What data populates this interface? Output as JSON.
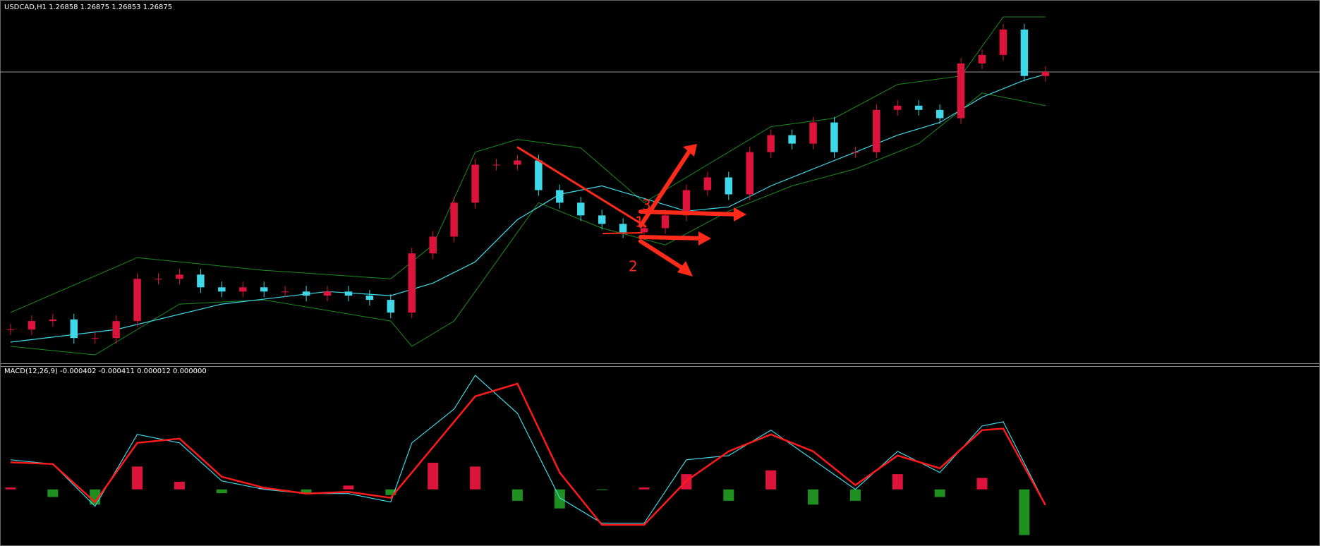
{
  "chart_data": [
    {
      "type": "candlestick",
      "title": "USDCAD,H1  1.26858 1.26875 1.26853 1.26875",
      "close": [
        1.25173,
        1.25229,
        1.2524,
        1.25117,
        1.25117,
        1.25229,
        1.25508,
        1.25508,
        1.25536,
        1.25452,
        1.25424,
        1.25452,
        1.25424,
        1.25424,
        1.25397,
        1.25424,
        1.25397,
        1.25369,
        1.25285,
        1.25676,
        1.25787,
        1.26011,
        1.26262,
        1.26262,
        1.2629,
        1.26094,
        1.26011,
        1.25927,
        1.25871,
        1.25815,
        1.25843,
        1.25927,
        1.26094,
        1.26178,
        1.26066,
        1.26345,
        1.26457,
        1.26401,
        1.26541,
        1.26345,
        1.26345,
        1.26624,
        1.26652,
        1.26624,
        1.26569,
        1.26931,
        1.26987,
        1.27155,
        1.26848,
        1.26875
      ],
      "up_color": "#dc143c",
      "down_color": "#3fd8e8",
      "ma": {
        "color": "#3fd8e8",
        "x": [
          0,
          5,
          10,
          15,
          18,
          20,
          22,
          24,
          26,
          28,
          30,
          32,
          34,
          36,
          38,
          40,
          42,
          44,
          46,
          48,
          49
        ],
        "values": [
          1.2509,
          1.25173,
          1.25341,
          1.25424,
          1.25397,
          1.2548,
          1.2562,
          1.25899,
          1.26066,
          1.26122,
          1.26039,
          1.25955,
          1.25983,
          1.26122,
          1.26234,
          1.26345,
          1.26457,
          1.26541,
          1.26708,
          1.2682,
          1.26859
        ]
      },
      "band_upper": {
        "color": "#1c8c1c",
        "x": [
          0,
          6,
          12,
          18,
          20,
          22,
          24,
          27,
          30,
          33,
          36,
          39,
          42,
          45,
          47,
          49
        ],
        "values": [
          1.25285,
          1.25648,
          1.25564,
          1.25508,
          1.25732,
          1.26345,
          1.26429,
          1.26373,
          1.26011,
          1.26262,
          1.26513,
          1.26569,
          1.26792,
          1.26848,
          1.27238,
          1.27238
        ]
      },
      "band_lower": {
        "color": "#1c8c1c",
        "x": [
          0,
          4,
          8,
          12,
          18,
          19,
          21,
          23,
          25,
          28,
          31,
          34,
          37,
          40,
          43,
          46,
          49
        ],
        "values": [
          1.25062,
          1.25006,
          1.25341,
          1.25369,
          1.25229,
          1.25062,
          1.25229,
          1.2562,
          1.26011,
          1.25843,
          1.25732,
          1.25955,
          1.26122,
          1.26234,
          1.26401,
          1.26736,
          1.26652
        ]
      },
      "xlim": [
        -0.5,
        62
      ],
      "ylim": [
        1.2495,
        1.2735
      ],
      "annotations": [
        "3",
        "1",
        "2"
      ]
    },
    {
      "type": "macd",
      "title": "MACD(12,26,9) -0.000402 -0.000411 0.000012 0.000000",
      "x": [
        0,
        2,
        4,
        6,
        8,
        10,
        12,
        14,
        16,
        18,
        19,
        21,
        22,
        24,
        26,
        28,
        30,
        32,
        34,
        36,
        38,
        40,
        42,
        44,
        46,
        47,
        49
      ],
      "macd": {
        "color": "#3fd8e8",
        "values": [
          0.000777,
          0.000666,
          -0.000444,
          0.001443,
          0.001221,
          0.000222,
          0,
          -0.000111,
          -0.000111,
          -0.000333,
          0.001221,
          0.002109,
          0.002997,
          0.001998,
          -0.000222,
          -0.000888,
          -0.000888,
          0.000777,
          0.000888,
          0.001554,
          0.000777,
          0,
          0.000999,
          0.000444,
          0.001665,
          0.001776,
          -0.000402
        ]
      },
      "signal": {
        "color": "#ff1a1a",
        "values": [
          0.00071,
          0.000666,
          -0.000333,
          0.001221,
          0.001332,
          0.000333,
          4.4e-05,
          -0.000111,
          -6.7e-05,
          -0.000222,
          0.000444,
          0.001776,
          0.002442,
          0.002775,
          0.000444,
          -0.000932,
          -0.000932,
          0.000222,
          0.000999,
          0.001443,
          0.000999,
          0.000111,
          0.000888,
          0.000555,
          0.001554,
          0.001598,
          -0.000411
        ]
      },
      "histogram": {
        "up_color": "#dc143c",
        "down_color": "#1f8f1f",
        "x": [
          0,
          2,
          4,
          6,
          8,
          10,
          12,
          14,
          16,
          18,
          20,
          22,
          24,
          26,
          28,
          30,
          32,
          34,
          36,
          38,
          40,
          42,
          44,
          46,
          48
        ],
        "values": [
          5e-05,
          -0.0002,
          -0.0004,
          0.0006,
          0.0002,
          -0.0001,
          5e-05,
          -0.0001,
          0.0001,
          -0.00015,
          0.0007,
          0.0006,
          -0.0003,
          -0.0005,
          -2e-05,
          5e-05,
          0.0004,
          -0.0003,
          0.0005,
          -0.0004,
          -0.0003,
          0.0004,
          -0.0002,
          0.0003,
          -0.0012
        ]
      },
      "xlim": [
        -0.5,
        62
      ],
      "ylim": [
        -0.00145,
        0.0032
      ]
    }
  ]
}
